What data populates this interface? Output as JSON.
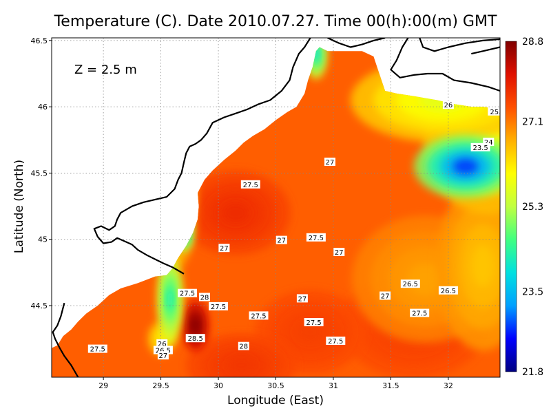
{
  "chart_data": {
    "type": "heatmap",
    "title": "Temperature (C). Date 2010.07.27. Time 00(h):00(m) GMT",
    "xlabel": "Longitude (East)",
    "ylabel": "Latitude (North)",
    "xlim": [
      28.55,
      32.45
    ],
    "ylim": [
      43.96,
      46.52
    ],
    "x_ticks": [
      {
        "v": 29,
        "label": "29"
      },
      {
        "v": 29.5,
        "label": "29.5"
      },
      {
        "v": 30,
        "label": "30"
      },
      {
        "v": 30.5,
        "label": "30.5"
      },
      {
        "v": 31,
        "label": "31"
      },
      {
        "v": 31.5,
        "label": "31.5"
      },
      {
        "v": 32,
        "label": "32"
      }
    ],
    "y_ticks": [
      {
        "v": 44.5,
        "label": "44.5"
      },
      {
        "v": 45,
        "label": "45"
      },
      {
        "v": 45.5,
        "label": "45.5"
      },
      {
        "v": 46,
        "label": "46"
      },
      {
        "v": 46.5,
        "label": "46.5"
      }
    ],
    "grid": true,
    "depth_label": "Z = 2.5 m",
    "colorbar": {
      "min": 21.8,
      "max": 28.8,
      "tick_values": [
        28.8,
        27.1,
        25.3,
        23.5,
        21.8
      ],
      "tick_labels": [
        "28.8",
        "27.1",
        "25.3",
        "23.5",
        "21.8"
      ],
      "colors": [
        "#000080",
        "#0000ff",
        "#00a0ff",
        "#00e0e0",
        "#40ff80",
        "#c0ff40",
        "#ffff00",
        "#ffb000",
        "#ff5000",
        "#e01000",
        "#800000"
      ]
    },
    "field": {
      "background_value": 27.3,
      "anomalies": [
        {
          "lon": 32.15,
          "lat": 45.55,
          "sx": 0.28,
          "sy": 0.15,
          "amp": -4.6
        },
        {
          "lon": 32.35,
          "lat": 45.75,
          "sx": 0.35,
          "sy": 0.35,
          "amp": -1.4
        },
        {
          "lon": 31.95,
          "lat": 46.05,
          "sx": 0.5,
          "sy": 0.2,
          "amp": -1.6
        },
        {
          "lon": 30.85,
          "lat": 46.4,
          "sx": 0.06,
          "sy": 0.12,
          "amp": -3.5
        },
        {
          "lon": 29.7,
          "lat": 45.05,
          "sx": 0.05,
          "sy": 0.09,
          "amp": -4.0
        },
        {
          "lon": 29.58,
          "lat": 44.55,
          "sx": 0.07,
          "sy": 0.22,
          "amp": -3.2
        },
        {
          "lon": 29.5,
          "lat": 44.25,
          "sx": 0.07,
          "sy": 0.08,
          "amp": -1.2
        },
        {
          "lon": 29.8,
          "lat": 44.35,
          "sx": 0.07,
          "sy": 0.12,
          "amp": 1.6
        },
        {
          "lon": 30.15,
          "lat": 45.2,
          "sx": 0.3,
          "sy": 0.2,
          "amp": 0.5
        },
        {
          "lon": 29.65,
          "lat": 45.35,
          "sx": 0.1,
          "sy": 0.35,
          "amp": -1.3
        },
        {
          "lon": 31.7,
          "lat": 44.35,
          "sx": 0.4,
          "sy": 0.25,
          "amp": 0.3
        },
        {
          "lon": 30.8,
          "lat": 44.3,
          "sx": 0.3,
          "sy": 0.2,
          "amp": 0.3
        },
        {
          "lon": 30.2,
          "lat": 44.05,
          "sx": 0.3,
          "sy": 0.15,
          "amp": 0.4
        },
        {
          "lon": 31.8,
          "lat": 44.7,
          "sx": 0.4,
          "sy": 0.3,
          "amp": -0.5
        },
        {
          "lon": 32.3,
          "lat": 44.8,
          "sx": 0.25,
          "sy": 0.4,
          "amp": -0.8
        }
      ]
    },
    "sea_boundary": [
      [
        28.55,
        43.96
      ],
      [
        28.55,
        44.18
      ],
      [
        28.6,
        44.2
      ],
      [
        28.65,
        44.27
      ],
      [
        28.72,
        44.32
      ],
      [
        28.78,
        44.38
      ],
      [
        28.85,
        44.44
      ],
      [
        28.95,
        44.5
      ],
      [
        29.05,
        44.58
      ],
      [
        29.15,
        44.63
      ],
      [
        29.3,
        44.67
      ],
      [
        29.45,
        44.72
      ],
      [
        29.55,
        44.73
      ],
      [
        29.6,
        44.78
      ],
      [
        29.65,
        44.86
      ],
      [
        29.72,
        44.95
      ],
      [
        29.78,
        45.05
      ],
      [
        29.82,
        45.15
      ],
      [
        29.83,
        45.25
      ],
      [
        29.82,
        45.35
      ],
      [
        29.88,
        45.45
      ],
      [
        29.95,
        45.52
      ],
      [
        30.05,
        45.6
      ],
      [
        30.15,
        45.67
      ],
      [
        30.22,
        45.73
      ],
      [
        30.3,
        45.78
      ],
      [
        30.4,
        45.83
      ],
      [
        30.5,
        45.9
      ],
      [
        30.6,
        45.96
      ],
      [
        30.68,
        46.0
      ],
      [
        30.75,
        46.1
      ],
      [
        30.78,
        46.2
      ],
      [
        30.82,
        46.3
      ],
      [
        30.85,
        46.42
      ],
      [
        30.88,
        46.45
      ],
      [
        30.95,
        46.42
      ],
      [
        31.05,
        46.42
      ],
      [
        31.15,
        46.42
      ],
      [
        31.25,
        46.42
      ],
      [
        31.35,
        46.38
      ],
      [
        31.4,
        46.25
      ],
      [
        31.45,
        46.12
      ],
      [
        31.55,
        46.1
      ],
      [
        31.7,
        46.08
      ],
      [
        31.9,
        46.05
      ],
      [
        32.05,
        46.02
      ],
      [
        32.2,
        46.0
      ],
      [
        32.3,
        46.0
      ],
      [
        32.45,
        45.98
      ],
      [
        32.45,
        43.96
      ]
    ],
    "coastline": [
      [
        [
          28.78,
          43.96
        ],
        [
          28.72,
          44.05
        ],
        [
          28.66,
          44.12
        ],
        [
          28.62,
          44.18
        ],
        [
          28.58,
          44.25
        ],
        [
          28.56,
          44.3
        ],
        [
          28.6,
          44.35
        ],
        [
          28.63,
          44.42
        ],
        [
          28.66,
          44.52
        ]
      ],
      [
        [
          29.7,
          44.74
        ],
        [
          29.6,
          44.79
        ],
        [
          29.52,
          44.82
        ],
        [
          29.45,
          44.85
        ],
        [
          29.38,
          44.88
        ],
        [
          29.3,
          44.92
        ],
        [
          29.25,
          44.96
        ],
        [
          29.2,
          44.98
        ],
        [
          29.12,
          45.01
        ],
        [
          29.07,
          44.98
        ],
        [
          29.0,
          44.97
        ],
        [
          28.95,
          45.02
        ],
        [
          28.92,
          45.08
        ],
        [
          28.98,
          45.1
        ],
        [
          29.05,
          45.07
        ],
        [
          29.1,
          45.1
        ],
        [
          29.12,
          45.15
        ],
        [
          29.15,
          45.2
        ],
        [
          29.25,
          45.25
        ],
        [
          29.35,
          45.28
        ],
        [
          29.45,
          45.3
        ],
        [
          29.55,
          45.32
        ],
        [
          29.62,
          45.38
        ],
        [
          29.65,
          45.45
        ],
        [
          29.68,
          45.5
        ],
        [
          29.7,
          45.58
        ],
        [
          29.72,
          45.65
        ],
        [
          29.75,
          45.7
        ],
        [
          29.8,
          45.72
        ],
        [
          29.85,
          45.75
        ],
        [
          29.9,
          45.8
        ],
        [
          29.95,
          45.88
        ],
        [
          30.05,
          45.92
        ],
        [
          30.15,
          45.95
        ],
        [
          30.25,
          45.98
        ],
        [
          30.35,
          46.02
        ],
        [
          30.45,
          46.05
        ],
        [
          30.55,
          46.12
        ],
        [
          30.62,
          46.2
        ],
        [
          30.65,
          46.3
        ],
        [
          30.7,
          46.4
        ],
        [
          30.75,
          46.45
        ],
        [
          30.8,
          46.52
        ]
      ],
      [
        [
          30.95,
          46.52
        ],
        [
          31.05,
          46.48
        ],
        [
          31.15,
          46.45
        ],
        [
          31.25,
          46.47
        ],
        [
          31.35,
          46.5
        ],
        [
          31.45,
          46.52
        ]
      ],
      [
        [
          31.65,
          46.52
        ],
        [
          31.6,
          46.45
        ],
        [
          31.55,
          46.35
        ],
        [
          31.5,
          46.28
        ],
        [
          31.58,
          46.22
        ],
        [
          31.7,
          46.24
        ],
        [
          31.82,
          46.25
        ],
        [
          31.95,
          46.25
        ],
        [
          32.05,
          46.2
        ],
        [
          32.2,
          46.18
        ],
        [
          32.35,
          46.15
        ],
        [
          32.45,
          46.12
        ]
      ],
      [
        [
          31.75,
          46.52
        ],
        [
          31.78,
          46.45
        ],
        [
          31.88,
          46.42
        ],
        [
          32.0,
          46.45
        ],
        [
          32.15,
          46.48
        ],
        [
          32.3,
          46.5
        ],
        [
          32.45,
          46.51
        ]
      ],
      [
        [
          32.2,
          46.4
        ],
        [
          32.3,
          46.42
        ],
        [
          32.45,
          46.45
        ]
      ]
    ],
    "contour_labels": [
      {
        "text": "27.5",
        "lon": 30.28,
        "lat": 45.41
      },
      {
        "text": "27",
        "lon": 30.97,
        "lat": 45.58
      },
      {
        "text": "26",
        "lon": 32.0,
        "lat": 46.01
      },
      {
        "text": "25.",
        "lon": 32.41,
        "lat": 45.96
      },
      {
        "text": "24",
        "lon": 32.35,
        "lat": 45.73
      },
      {
        "text": "23.5",
        "lon": 32.28,
        "lat": 45.69
      },
      {
        "text": "27",
        "lon": 30.55,
        "lat": 44.99
      },
      {
        "text": "27.5",
        "lon": 30.85,
        "lat": 45.01
      },
      {
        "text": "27",
        "lon": 30.05,
        "lat": 44.93
      },
      {
        "text": "27",
        "lon": 31.05,
        "lat": 44.9
      },
      {
        "text": "26.5",
        "lon": 31.67,
        "lat": 44.66
      },
      {
        "text": "26.5",
        "lon": 32.0,
        "lat": 44.61
      },
      {
        "text": "27",
        "lon": 31.45,
        "lat": 44.57
      },
      {
        "text": "27",
        "lon": 30.73,
        "lat": 44.55
      },
      {
        "text": "27.5",
        "lon": 29.73,
        "lat": 44.59
      },
      {
        "text": "28",
        "lon": 29.88,
        "lat": 44.56
      },
      {
        "text": "27.5",
        "lon": 30.0,
        "lat": 44.49
      },
      {
        "text": "27.5",
        "lon": 30.35,
        "lat": 44.42
      },
      {
        "text": "27.5",
        "lon": 31.75,
        "lat": 44.44
      },
      {
        "text": "27.5",
        "lon": 30.83,
        "lat": 44.37
      },
      {
        "text": "27.5",
        "lon": 31.02,
        "lat": 44.23
      },
      {
        "text": "28.5",
        "lon": 29.8,
        "lat": 44.25
      },
      {
        "text": "28",
        "lon": 30.22,
        "lat": 44.19
      },
      {
        "text": "26",
        "lon": 29.51,
        "lat": 44.21
      },
      {
        "text": "26.5",
        "lon": 29.52,
        "lat": 44.16
      },
      {
        "text": "27",
        "lon": 29.52,
        "lat": 44.12
      },
      {
        "text": "27.5",
        "lon": 28.95,
        "lat": 44.17
      }
    ]
  }
}
